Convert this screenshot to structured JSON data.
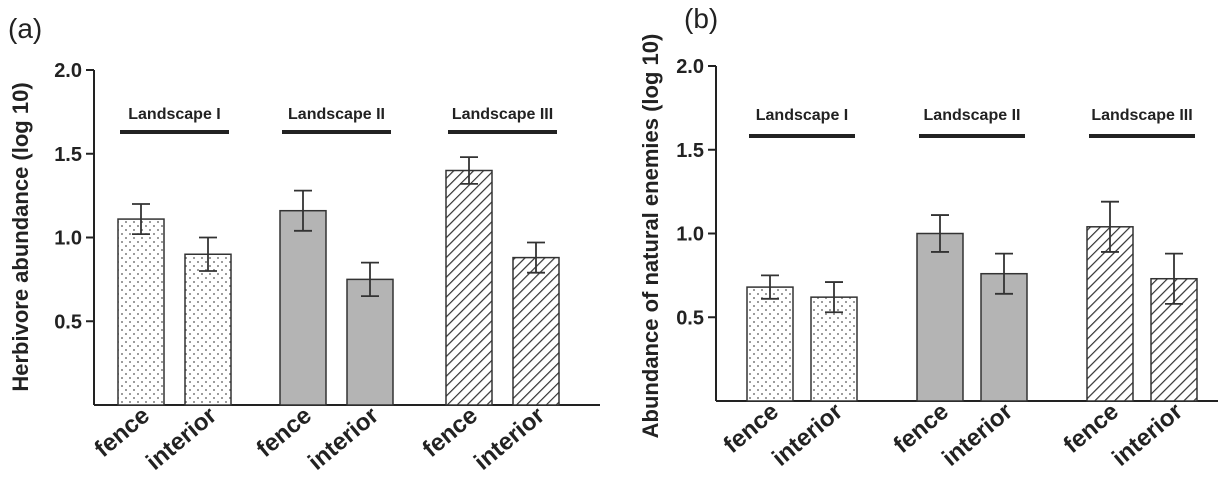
{
  "chart_data": [
    {
      "type": "bar",
      "panel_label": "(a)",
      "ylabel": "Herbivore abundance (log 10)",
      "ylim": [
        0,
        2.0
      ],
      "yticks": [
        0.5,
        1.0,
        1.5,
        2.0
      ],
      "ytick_labels": [
        "0.5",
        "1.0",
        "1.5",
        "2.0"
      ],
      "groups": [
        {
          "name": "Landscape I",
          "fill": "dots",
          "bars": [
            {
              "category": "fence",
              "value": 1.11,
              "error": 0.09
            },
            {
              "category": "interior",
              "value": 0.9,
              "error": 0.1
            }
          ]
        },
        {
          "name": "Landscape II",
          "fill": "gray",
          "bars": [
            {
              "category": "fence",
              "value": 1.16,
              "error": 0.12
            },
            {
              "category": "interior",
              "value": 0.75,
              "error": 0.1
            }
          ]
        },
        {
          "name": "Landscape III",
          "fill": "hatch",
          "bars": [
            {
              "category": "fence",
              "value": 1.4,
              "error": 0.08
            },
            {
              "category": "interior",
              "value": 0.88,
              "error": 0.09
            }
          ]
        }
      ]
    },
    {
      "type": "bar",
      "panel_label": "(b)",
      "ylabel": "Abundance of natural enemies (log 10)",
      "ylim": [
        0,
        2.0
      ],
      "yticks": [
        0.5,
        1.0,
        1.5,
        2.0
      ],
      "ytick_labels": [
        "0.5",
        "1.0",
        "1.5",
        "2.0"
      ],
      "groups": [
        {
          "name": "Landscape I",
          "fill": "dots",
          "bars": [
            {
              "category": "fence",
              "value": 0.68,
              "error": 0.07
            },
            {
              "category": "interior",
              "value": 0.62,
              "error": 0.09
            }
          ]
        },
        {
          "name": "Landscape II",
          "fill": "gray",
          "bars": [
            {
              "category": "fence",
              "value": 1.0,
              "error": 0.11
            },
            {
              "category": "interior",
              "value": 0.76,
              "error": 0.12
            }
          ]
        },
        {
          "name": "Landscape III",
          "fill": "hatch",
          "bars": [
            {
              "category": "fence",
              "value": 1.04,
              "error": 0.15
            },
            {
              "category": "interior",
              "value": 0.73,
              "error": 0.15
            }
          ]
        }
      ]
    }
  ],
  "colors": {
    "ink": "#222222",
    "gray_fill": "#b4b4b4",
    "dot_fill": "#ffffff",
    "hatch_line": "#333333"
  }
}
